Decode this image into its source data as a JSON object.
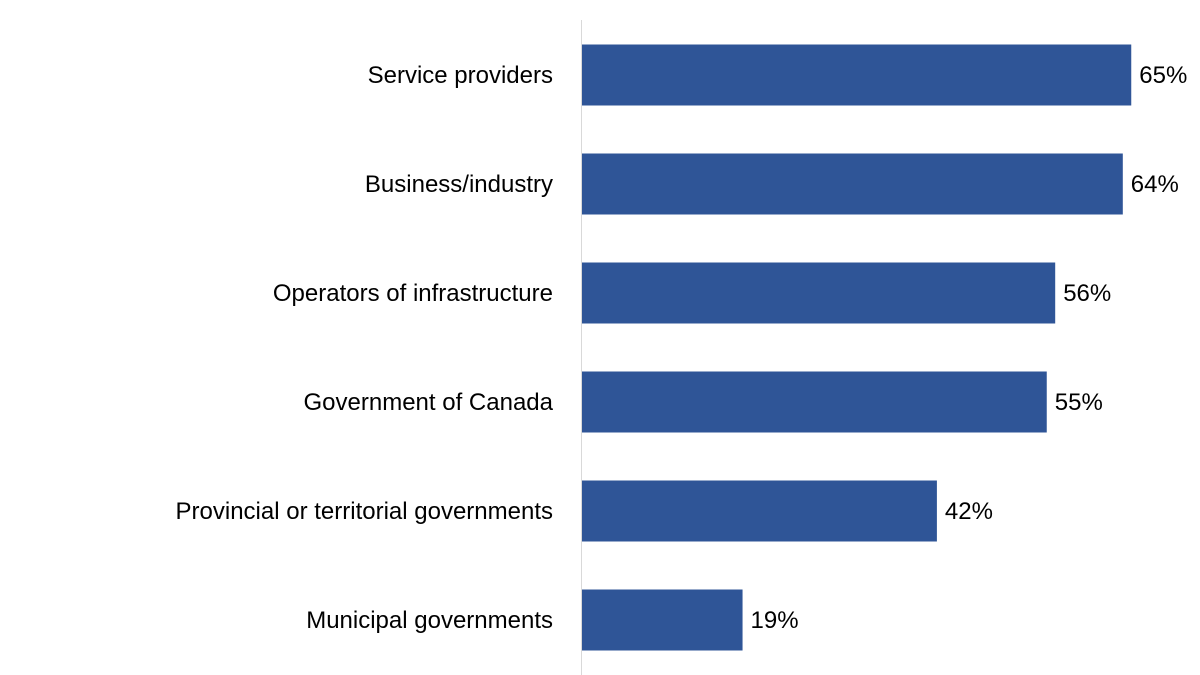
{
  "chart_data": {
    "type": "bar",
    "orientation": "horizontal",
    "categories": [
      "Service providers",
      "Business/industry",
      "Operators of infrastructure",
      "Government of Canada",
      "Provincial or territorial governments",
      "Municipal governments"
    ],
    "values": [
      65,
      64,
      56,
      55,
      42,
      19
    ],
    "labels": [
      "65%",
      "64%",
      "56%",
      "55%",
      "42%",
      "19%"
    ],
    "unit": "%",
    "xlim": [
      0,
      73
    ],
    "grid": false,
    "legend": "none",
    "colors": {
      "bar": "#2F5597",
      "axis": "#D9D9D9"
    }
  }
}
